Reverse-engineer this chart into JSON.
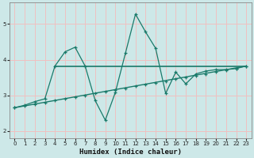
{
  "xlabel": "Humidex (Indice chaleur)",
  "x_ticks": [
    0,
    1,
    2,
    3,
    4,
    5,
    6,
    7,
    8,
    9,
    10,
    11,
    12,
    13,
    14,
    15,
    16,
    17,
    18,
    19,
    20,
    21,
    22,
    23
  ],
  "ylim": [
    1.8,
    5.6
  ],
  "xlim": [
    -0.5,
    23.5
  ],
  "yticks": [
    2,
    3,
    4,
    5
  ],
  "bg_color": "#cde8e8",
  "line_color": "#1a7a6a",
  "grid_color": "#f0c0c0",
  "curve_x": [
    0,
    1,
    2,
    3,
    4,
    5,
    6,
    7,
    8,
    9,
    10,
    11,
    12,
    13,
    14,
    15,
    16,
    17,
    18,
    19,
    20,
    21,
    22,
    23
  ],
  "curve_y": [
    2.65,
    2.72,
    2.82,
    2.9,
    3.82,
    4.22,
    4.35,
    3.82,
    2.85,
    2.3,
    3.08,
    4.18,
    5.28,
    4.78,
    4.32,
    3.05,
    3.65,
    3.32,
    3.6,
    3.68,
    3.72,
    3.72,
    3.75,
    3.82
  ],
  "hline_x": [
    4,
    23
  ],
  "hline_y": [
    3.82,
    3.82
  ],
  "trend_x": [
    0,
    23
  ],
  "trend_y": [
    2.65,
    3.82
  ],
  "trend_markers_x": [
    0,
    1,
    2,
    3,
    4,
    5,
    6,
    7,
    8,
    9,
    10,
    11,
    12,
    13,
    14,
    15,
    16,
    17,
    18,
    19,
    20,
    21,
    22,
    23
  ],
  "trend_markers_y": [
    2.65,
    2.7,
    2.75,
    2.8,
    2.85,
    2.9,
    2.95,
    3.0,
    3.05,
    3.1,
    3.15,
    3.2,
    3.25,
    3.3,
    3.35,
    3.4,
    3.45,
    3.5,
    3.55,
    3.6,
    3.65,
    3.7,
    3.75,
    3.82
  ]
}
